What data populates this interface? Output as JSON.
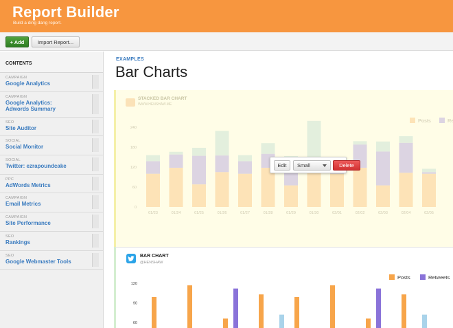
{
  "app": {
    "title": "Report Builder",
    "subtitle": "Build a ding dang report."
  },
  "toolbar": {
    "add_label": "+ Add",
    "import_label": "Import Report..."
  },
  "sidebar": {
    "heading": "CONTENTS",
    "items": [
      {
        "category": "CAMPAIGN",
        "name": "Google Analytics"
      },
      {
        "category": "CAMPAIGN",
        "name": "Google Analytics: Adwords Summary"
      },
      {
        "category": "SEO",
        "name": "Site Auditor"
      },
      {
        "category": "SOCIAL",
        "name": "Social Monitor"
      },
      {
        "category": "SOCIAL",
        "name": "Twitter: ezrapoundcake"
      },
      {
        "category": "PPC",
        "name": "AdWords Metrics"
      },
      {
        "category": "CAMPAIGN",
        "name": "Email Metrics"
      },
      {
        "category": "CAMPAIGN",
        "name": "Site Performance"
      },
      {
        "category": "SEO",
        "name": "Rankings"
      },
      {
        "category": "SEO",
        "name": "Google Webmaster Tools"
      }
    ]
  },
  "main": {
    "eyebrow": "EXAMPLES",
    "title": "Bar Charts"
  },
  "popover": {
    "edit_label": "Edit",
    "size_value": "Small",
    "delete_label": "Delete"
  },
  "card1": {
    "title": "STACKED BAR CHART",
    "handle": "WWW.HENSHAW.ME"
  },
  "card2": {
    "title": "BAR CHART",
    "handle": "@HENSHAW"
  },
  "colors": {
    "header": "#f7963f",
    "posts": "#f7a54a",
    "retweets": "#8a73d9",
    "third": "#a9d3ea",
    "link": "#3a7bbf",
    "delete": "#d93636",
    "add": "#3b8f2e"
  },
  "chart_data": [
    {
      "type": "bar",
      "stacked": true,
      "title": "STACKED BAR CHART",
      "categories": [
        "01/23",
        "01/24",
        "01/25",
        "01/26",
        "01/27",
        "01/28",
        "01/29",
        "01/30",
        "02/01",
        "02/02",
        "02/03",
        "02/04",
        "02/05"
      ],
      "ylim": [
        0,
        240
      ],
      "yticks": [
        0,
        60,
        120,
        180,
        240
      ],
      "legend_position": "top-right",
      "series": [
        {
          "name": "Posts",
          "values": [
            100,
            118,
            68,
            105,
            100,
            118,
            65,
            103,
            100,
            118,
            65,
            103,
            100
          ]
        },
        {
          "name": "Retweets",
          "values": [
            38,
            40,
            86,
            50,
            38,
            42,
            66,
            38,
            25,
            70,
            102,
            90,
            5
          ]
        },
        {
          "name": "",
          "values": [
            18,
            8,
            24,
            74,
            18,
            32,
            22,
            118,
            8,
            10,
            30,
            20,
            10
          ]
        }
      ]
    },
    {
      "type": "bar",
      "title": "BAR CHART",
      "ylim": [
        60,
        120
      ],
      "yticks": [
        60,
        90,
        120
      ],
      "legend_position": "top-right",
      "series": [
        {
          "name": "Posts",
          "values": [
            99,
            117,
            66,
            103,
            99,
            117,
            66,
            103
          ]
        },
        {
          "name": "Retweets",
          "values": [
            null,
            null,
            112,
            null,
            null,
            null,
            112,
            null
          ]
        },
        {
          "name": "",
          "values": [
            null,
            null,
            null,
            72,
            null,
            null,
            null,
            72
          ]
        }
      ]
    }
  ]
}
